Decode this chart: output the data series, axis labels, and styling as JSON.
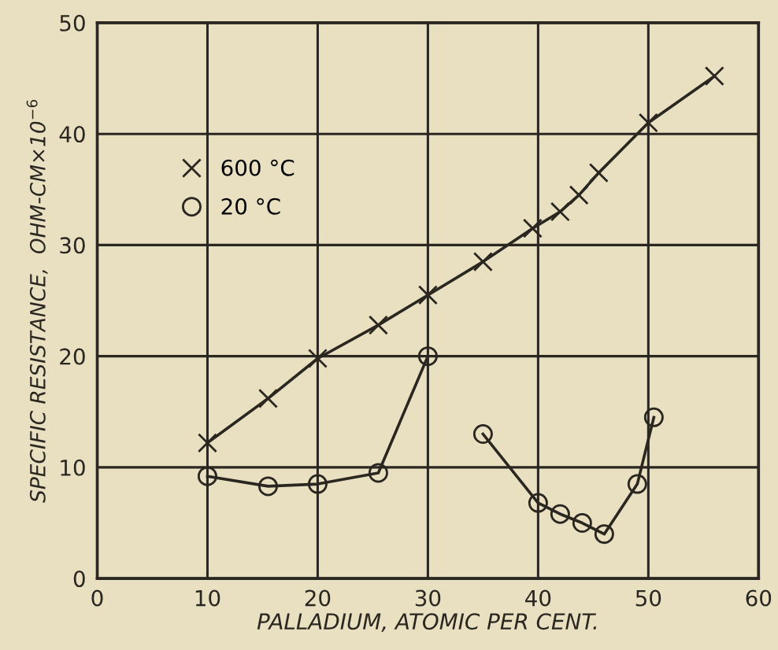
{
  "chart_data": {
    "type": "line",
    "xlabel": "PALLADIUM, ATOMIC PER CENT.",
    "ylabel": "SPECIFIC RESISTANCE,  OHM-CM×10$^{−6}$",
    "series": [
      {
        "name": "600 °C",
        "color": "#2a2620",
        "marker": "cross",
        "x": [
          10,
          15.5,
          20,
          25.5,
          30,
          35,
          39.5,
          42,
          43.7,
          45.5,
          50,
          56
        ],
        "values": [
          12.2,
          16.2,
          19.8,
          22.8,
          25.5,
          28.5,
          31.5,
          33,
          34.5,
          36.5,
          41,
          45.2
        ]
      },
      {
        "name": "20 °C",
        "color": "#2a2620",
        "marker": "circle",
        "x": [
          10,
          15.5,
          20,
          25.5,
          30,
          32.5,
          35,
          40,
          42,
          44,
          46,
          49,
          50.5
        ],
        "values": [
          9.2,
          8.3,
          8.5,
          9.5,
          20,
          null,
          13,
          6.8,
          5.8,
          5,
          4,
          8.5,
          14.5
        ]
      }
    ],
    "xlim": [
      0,
      60
    ],
    "ylim": [
      0,
      50
    ],
    "xticks": [
      0,
      10,
      20,
      30,
      40,
      50,
      60
    ],
    "yticks": [
      0,
      10,
      20,
      30,
      40,
      50
    ],
    "grid": true,
    "legend": "top left",
    "line_style": "solid"
  }
}
